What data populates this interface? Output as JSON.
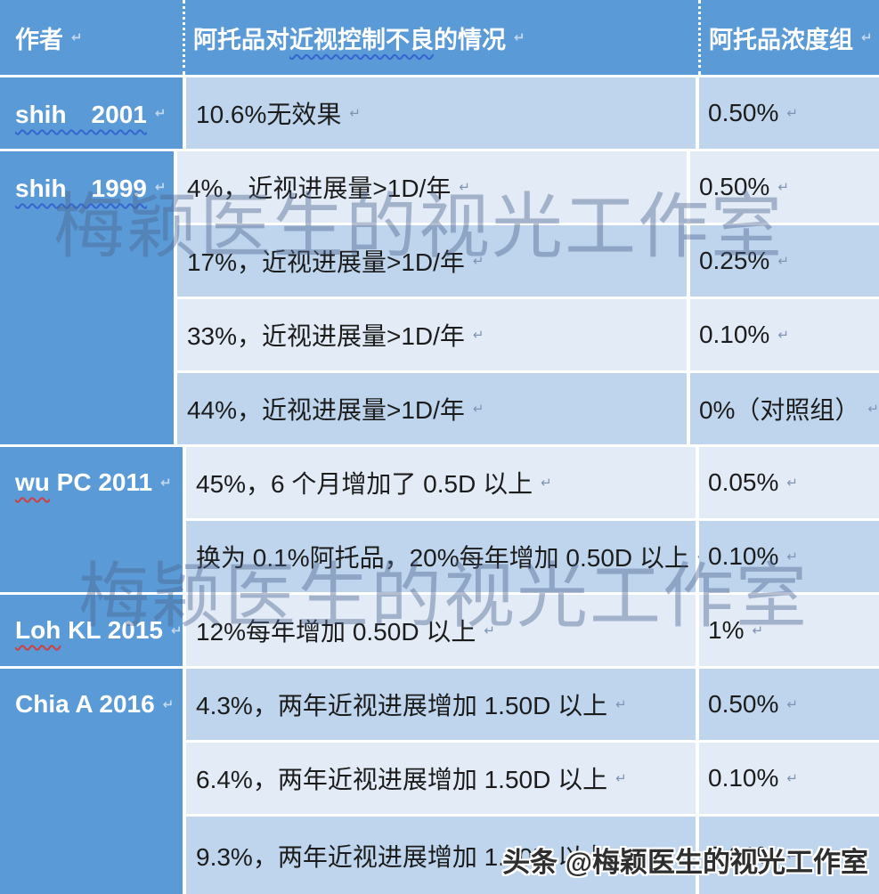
{
  "colors": {
    "header_blue": "#5a9ad6",
    "row_medium": "#bed5ed",
    "row_light": "#e2ebf6",
    "separator_white": "#ffffff",
    "body_text": "#1c1c1c",
    "squiggle_blue": "#3465d0",
    "squiggle_red": "#cf4040",
    "watermark": "rgba(77,100,142,0.42)"
  },
  "header": {
    "col_author": "作者",
    "col_condition_pre": "阿托品对",
    "col_condition_wavy": "近视控制不良",
    "col_condition_post": "的情况",
    "col_concentration": "阿托品浓度组",
    "paragraph_mark": "↵"
  },
  "blocks": [
    {
      "author_parts": [
        {
          "text": "shih　2001",
          "squiggle": "blue"
        }
      ],
      "rows": [
        {
          "desc": "10.6%无效果",
          "conc": "0.50%",
          "shade": "m"
        }
      ]
    },
    {
      "author_parts": [
        {
          "text": "shih　1999",
          "squiggle": "blue"
        }
      ],
      "rows": [
        {
          "desc": "4%，近视进展量>1D/年",
          "conc": "0.50%",
          "shade": "l"
        },
        {
          "desc": "17%，近视进展量>1D/年",
          "conc": "0.25%",
          "shade": "m"
        },
        {
          "desc": "33%，近视进展量>1D/年",
          "conc": "0.10%",
          "shade": "l"
        },
        {
          "desc": "44%，近视进展量>1D/年",
          "conc": "0%（对照组）",
          "shade": "m"
        }
      ]
    },
    {
      "author_parts": [
        {
          "text": "wu",
          "squiggle": "red"
        },
        {
          "text": " PC 2011",
          "squiggle": null
        }
      ],
      "rows": [
        {
          "desc": "45%，6 个月增加了 0.5D 以上",
          "conc": "0.05%",
          "shade": "l"
        },
        {
          "desc": "换为 0.1%阿托品，20%每年增加 0.50D 以上",
          "conc": "0.10%",
          "shade": "m"
        }
      ]
    },
    {
      "author_parts": [
        {
          "text": "Loh",
          "squiggle": "red"
        },
        {
          "text": " KL 2015",
          "squiggle": null
        }
      ],
      "rows": [
        {
          "desc": "12%每年增加 0.50D 以上",
          "conc": "1%",
          "shade": "l"
        }
      ]
    },
    {
      "author_parts": [
        {
          "text": "Chia A 2016",
          "squiggle": null
        }
      ],
      "rows": [
        {
          "desc": "4.3%，两年近视进展增加 1.50D 以上",
          "conc": "0.50%",
          "shade": "m"
        },
        {
          "desc": "6.4%，两年近视进展增加 1.50D 以上",
          "conc": "0.10%",
          "shade": "l"
        },
        {
          "desc": "9.3%，两年近视进展增加 1.50D 以上",
          "conc": "0.01%",
          "shade": "m"
        }
      ]
    }
  ],
  "watermark_text": "梅颖医生的视光工作室",
  "attribution": "头条 @梅颖医生的视光工作室"
}
